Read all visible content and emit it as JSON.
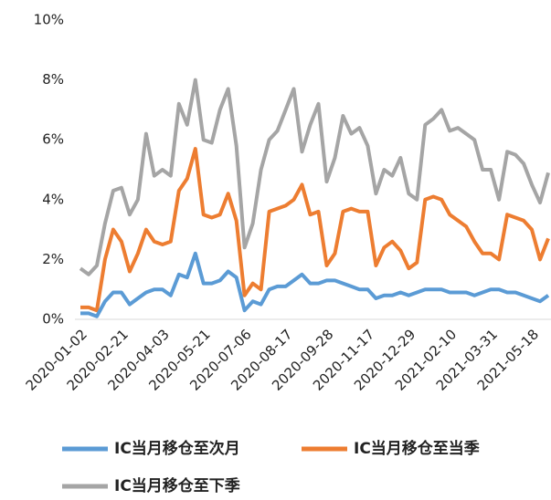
{
  "chart_data": {
    "type": "line",
    "categories": [
      "2020-01-02",
      null,
      null,
      null,
      null,
      "2020-02-21",
      null,
      null,
      null,
      null,
      "2020-04-03",
      null,
      null,
      null,
      null,
      "2020-05-21",
      null,
      null,
      null,
      null,
      "2020-07-06",
      null,
      null,
      null,
      null,
      "2020-08-17",
      null,
      null,
      null,
      null,
      "2020-09-28",
      null,
      null,
      null,
      null,
      "2020-11-17",
      null,
      null,
      null,
      null,
      "2020-12-29",
      null,
      null,
      null,
      null,
      "2021-02-10",
      null,
      null,
      null,
      null,
      "2021-03-31",
      null,
      null,
      null,
      null,
      "2021-05-18",
      null,
      null
    ],
    "series": [
      {
        "name": "IC当月移仓至次月",
        "color": "#5b9bd5",
        "values": [
          0.2,
          0.2,
          0.1,
          0.6,
          0.9,
          0.9,
          0.5,
          0.7,
          0.9,
          1.0,
          1.0,
          0.8,
          1.5,
          1.4,
          2.2,
          1.2,
          1.2,
          1.3,
          1.6,
          1.4,
          0.3,
          0.6,
          0.5,
          1.0,
          1.1,
          1.1,
          1.3,
          1.5,
          1.2,
          1.2,
          1.3,
          1.3,
          1.2,
          1.1,
          1.0,
          1.0,
          0.7,
          0.8,
          0.8,
          0.9,
          0.8,
          0.9,
          1.0,
          1.0,
          1.0,
          0.9,
          0.9,
          0.9,
          0.8,
          0.9,
          1.0,
          1.0,
          0.9,
          0.9,
          0.8,
          0.7,
          0.6,
          0.8
        ]
      },
      {
        "name": "IC当月移仓至当季",
        "color": "#ed7d31",
        "values": [
          0.4,
          0.4,
          0.3,
          2.0,
          3.0,
          2.6,
          1.6,
          2.2,
          3.0,
          2.6,
          2.5,
          2.6,
          4.3,
          4.7,
          5.7,
          3.5,
          3.4,
          3.5,
          4.2,
          3.3,
          0.8,
          1.2,
          1.0,
          3.6,
          3.7,
          3.8,
          4.0,
          4.5,
          3.5,
          3.6,
          1.8,
          2.2,
          3.6,
          3.7,
          3.6,
          3.6,
          1.8,
          2.4,
          2.6,
          2.3,
          1.7,
          1.9,
          4.0,
          4.1,
          4.0,
          3.5,
          3.3,
          3.1,
          2.6,
          2.2,
          2.2,
          2.0,
          3.5,
          3.4,
          3.3,
          3.0,
          2.0,
          2.7
        ]
      },
      {
        "name": "IC当月移仓至下季",
        "color": "#a5a5a5",
        "values": [
          1.7,
          1.5,
          1.8,
          3.2,
          4.3,
          4.4,
          3.5,
          4.0,
          6.2,
          4.8,
          5.0,
          4.8,
          7.2,
          6.5,
          8.0,
          6.0,
          5.9,
          7.0,
          7.7,
          5.8,
          2.4,
          3.2,
          5.0,
          6.0,
          6.3,
          7.0,
          7.7,
          5.6,
          6.5,
          7.2,
          4.6,
          5.4,
          6.8,
          6.2,
          6.4,
          5.8,
          4.2,
          5.0,
          4.8,
          5.4,
          4.2,
          4.0,
          6.5,
          6.7,
          7.0,
          6.3,
          6.4,
          6.2,
          6.0,
          5.0,
          5.0,
          4.0,
          5.6,
          5.5,
          5.2,
          4.5,
          3.9,
          4.9
        ]
      }
    ],
    "ylim": [
      0,
      10
    ],
    "yticks": [
      {
        "value": 0,
        "label": "0%"
      },
      {
        "value": 2,
        "label": "2%"
      },
      {
        "value": 4,
        "label": "4%"
      },
      {
        "value": 6,
        "label": "6%"
      },
      {
        "value": 8,
        "label": "8%"
      },
      {
        "value": 10,
        "label": "10%"
      }
    ]
  }
}
